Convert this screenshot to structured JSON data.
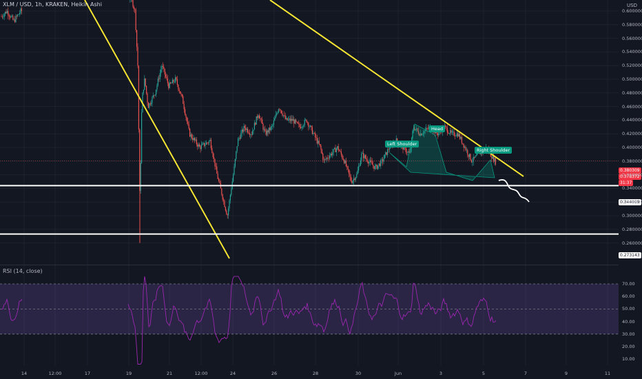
{
  "header": {
    "title": "XLM / USD, 1h, KRAKEN, Heikin Ashi",
    "currency": "USD"
  },
  "rsi_panel": {
    "title": "RSI (14, close)"
  },
  "pattern_labels": {
    "left_shoulder": "Left Shoulder",
    "head": "Head",
    "right_shoulder": "Right Shoulder"
  },
  "price_badges": {
    "last": "0.380309",
    "current": "0.378372",
    "countdown": "31:37",
    "support_1": "0.344019",
    "support_2": "0.273143"
  },
  "colors": {
    "background": "#131722",
    "up_candle": "#26a69a",
    "down_candle": "#ef5350",
    "trendline": "#f5e532",
    "support_line": "#ffffff",
    "rsi_line": "#9c27b0",
    "rsi_band": "#7e57c2",
    "pattern_fill": "#089981"
  },
  "chart_data": [
    {
      "type": "candlestick",
      "title": "XLM / USD, 1h, KRAKEN, Heikin Ashi",
      "xlabel": "",
      "ylabel": "USD",
      "x_ticks": [
        "14",
        "12:00",
        "17",
        "19",
        "21",
        "12:00",
        "24",
        "26",
        "28",
        "30",
        "Jun",
        "3",
        "5",
        "7",
        "9",
        "11"
      ],
      "y_ticks": [
        "0.600000",
        "0.580000",
        "0.560000",
        "0.540000",
        "0.520000",
        "0.500000",
        "0.480000",
        "0.460000",
        "0.440000",
        "0.420000",
        "0.400000",
        "0.380000",
        "0.360000",
        "0.340000",
        "0.320000",
        "0.300000",
        "0.280000",
        "0.260000"
      ],
      "ylim": [
        0.258,
        0.612
      ],
      "grid": true,
      "price_path": [
        [
          0,
          0.59
        ],
        [
          10,
          0.6
        ],
        [
          20,
          0.585
        ],
        [
          30,
          0.6
        ],
        [
          190,
          0.62
        ],
        [
          196,
          0.6
        ],
        [
          200,
          0.52
        ],
        [
          203,
          0.32
        ],
        [
          206,
          0.47
        ],
        [
          210,
          0.5
        ],
        [
          215,
          0.46
        ],
        [
          225,
          0.48
        ],
        [
          235,
          0.52
        ],
        [
          245,
          0.49
        ],
        [
          255,
          0.5
        ],
        [
          265,
          0.47
        ],
        [
          275,
          0.42
        ],
        [
          290,
          0.4
        ],
        [
          305,
          0.41
        ],
        [
          315,
          0.36
        ],
        [
          325,
          0.32
        ],
        [
          330,
          0.3
        ],
        [
          340,
          0.37
        ],
        [
          345,
          0.41
        ],
        [
          355,
          0.43
        ],
        [
          365,
          0.42
        ],
        [
          375,
          0.45
        ],
        [
          385,
          0.42
        ],
        [
          395,
          0.43
        ],
        [
          405,
          0.46
        ],
        [
          415,
          0.44
        ],
        [
          425,
          0.44
        ],
        [
          435,
          0.43
        ],
        [
          445,
          0.44
        ],
        [
          455,
          0.42
        ],
        [
          465,
          0.4
        ],
        [
          470,
          0.38
        ],
        [
          480,
          0.39
        ],
        [
          490,
          0.4
        ],
        [
          500,
          0.38
        ],
        [
          510,
          0.35
        ],
        [
          518,
          0.36
        ],
        [
          525,
          0.39
        ],
        [
          535,
          0.38
        ],
        [
          545,
          0.37
        ],
        [
          555,
          0.38
        ],
        [
          565,
          0.4
        ],
        [
          575,
          0.41
        ],
        [
          585,
          0.4
        ],
        [
          595,
          0.39
        ],
        [
          600,
          0.43
        ],
        [
          610,
          0.42
        ],
        [
          625,
          0.43
        ],
        [
          635,
          0.42
        ],
        [
          645,
          0.43
        ],
        [
          655,
          0.42
        ],
        [
          665,
          0.42
        ],
        [
          675,
          0.4
        ],
        [
          685,
          0.38
        ],
        [
          695,
          0.39
        ],
        [
          705,
          0.4
        ],
        [
          712,
          0.39
        ],
        [
          720,
          0.378
        ]
      ],
      "annotations": [
        {
          "type": "trendline",
          "points": [
            [
              0.0,
              0.635
            ],
            [
              0.365,
              0.258
            ]
          ]
        },
        {
          "type": "trendline",
          "points": [
            [
              0.43,
              0.635
            ],
            [
              0.82,
              0.374
            ]
          ]
        },
        {
          "type": "horizontal",
          "price": 0.344019,
          "label": "0.344019"
        },
        {
          "type": "horizontal",
          "price": 0.273143,
          "label": "0.273143"
        },
        {
          "type": "pattern",
          "name": "Head and Shoulders",
          "labels": [
            "Left Shoulder",
            "Head",
            "Right Shoulder"
          ]
        }
      ],
      "last_price": 0.378372
    },
    {
      "type": "line",
      "title": "RSI (14, close)",
      "y_ticks": [
        "70.00",
        "60.00",
        "50.00",
        "40.00",
        "30.00",
        "20.00",
        "10.00"
      ],
      "ylim": [
        4,
        78
      ],
      "band": [
        30,
        70
      ],
      "midline": 50,
      "grid": true
    }
  ]
}
